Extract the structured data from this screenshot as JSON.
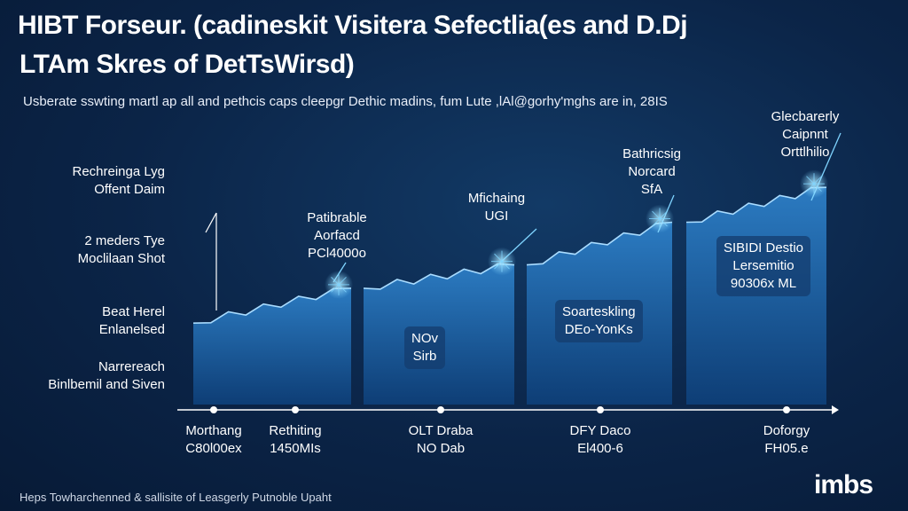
{
  "header": {
    "title_line1": "HIBT Forseur. (cadineskit Visitera Sefectlia(es and D.Dj",
    "title_line2": "LTAm Skres of DetTsWirsd)",
    "subtitle": "Usberate sswting martl ap all and pethcis caps cleepgr Dethic madins, fum Lute ,lAl@gorhy'mghs are in, 28IS"
  },
  "y_axis_labels": [
    {
      "line1": "Rechreinga Lyg",
      "line2": "Offent Daim"
    },
    {
      "line1": "2 meders Tye",
      "line2": "Moclilaan Shot"
    },
    {
      "line1": "Beat Herel",
      "line2": "Enlanelsed"
    },
    {
      "line1": "Narrereach",
      "line2": "Binlbemil and Siven"
    }
  ],
  "callouts": [
    {
      "line1": "Patibrable",
      "line2": "Aorfacd",
      "line3": "PCl4000o"
    },
    {
      "line1": "Mfichaing",
      "line2": "UGI",
      "line3": ""
    },
    {
      "line1": "Bathricsig",
      "line2": "Norcard",
      "line3": "SfA"
    },
    {
      "line1": "Glecbarerly",
      "line2": "Caipnnt",
      "line3": "Orttlhilio"
    }
  ],
  "segment_labels": [
    {
      "line1": "NOv",
      "line2": "Sirb",
      "line3": ""
    },
    {
      "line1": "Soarteskling",
      "line2": "DEo-YonKs",
      "line3": ""
    },
    {
      "line1": "SIBIDI Destio",
      "line2": "Lersemitio",
      "line3": "90306x ML"
    }
  ],
  "x_labels": [
    {
      "line1": "Morthang",
      "line2": "C80l00ex"
    },
    {
      "line1": "Rethiting",
      "line2": "1450MIs"
    },
    {
      "line1": "OLT Draba",
      "line2": "NO Dab"
    },
    {
      "line1": "DFY Daco",
      "line2": "El400-6"
    },
    {
      "line1": "Doforgy",
      "line2": "FH05.e"
    }
  ],
  "footer": {
    "text": "Heps Towharchenned & sallisite of Leasgerly Putnoble Upaht",
    "logo": "imbs"
  },
  "colors": {
    "background": "#0b2447",
    "area_fill_top": "#2d7fc7",
    "area_fill_bottom": "#0e3f78",
    "area_edge": "#a9dcff",
    "axis": "#ffffff",
    "glow": "#7fd4ff"
  },
  "chart_data": {
    "type": "area",
    "title": "HIBT Forseur. (cadineskit Visitera Sefectlia(es and D.Dj",
    "xlabel": "",
    "ylabel": "",
    "categories": [
      "Morthang",
      "Rethiting",
      "OLT Draba",
      "DFY Daco",
      "Doforgy"
    ],
    "series": [
      {
        "values": [
          2.1,
          3.0,
          3.6,
          4.7,
          5.6
        ]
      }
    ],
    "ylim": [
      0,
      7
    ],
    "grid": false,
    "legend": "none"
  }
}
